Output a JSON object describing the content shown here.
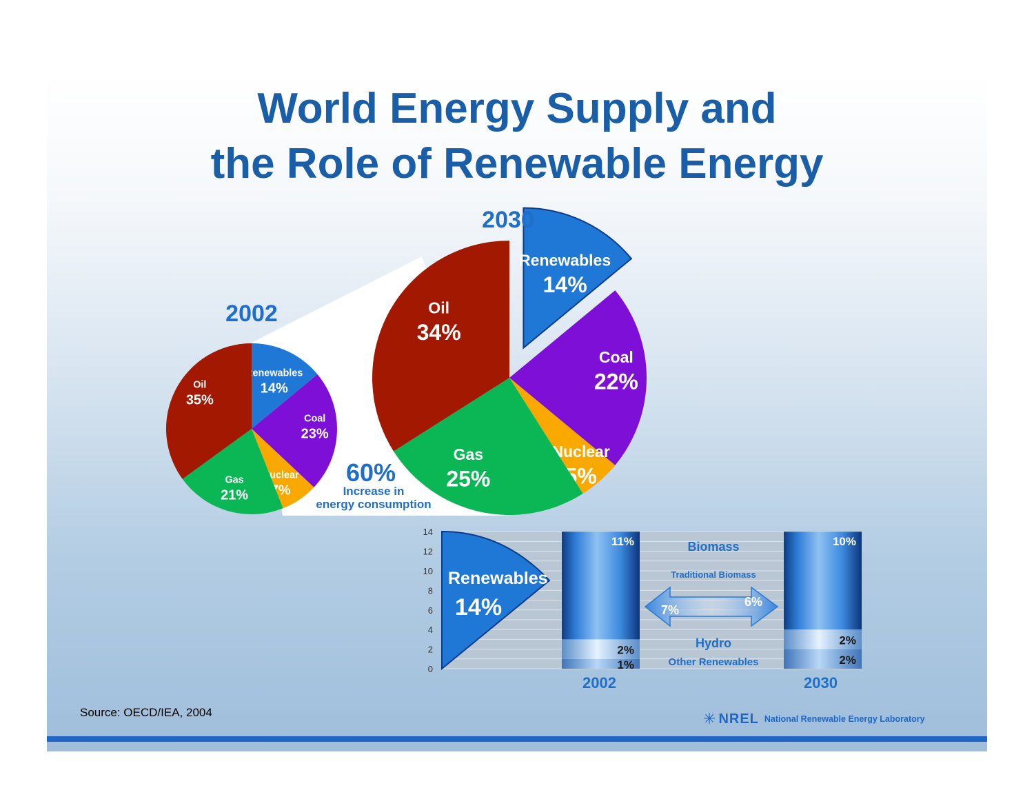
{
  "title": {
    "line1": "World Energy Supply and",
    "line2": "the Role of Renewable Energy"
  },
  "source": "Source: OECD/IEA, 2004",
  "logo": {
    "short": "NREL",
    "full": "National Renewable Energy Laboratory"
  },
  "colors": {
    "oil": "#a31800",
    "renewables": "#1f78d6",
    "coal": "#7d0fd6",
    "nuclear": "#f9a800",
    "gas": "#0bb655",
    "heading": "#1a5ea8"
  },
  "chart_data": [
    {
      "type": "pie",
      "title": "2002",
      "slices": [
        {
          "key": "renewables",
          "label": "Renewables",
          "value": 14,
          "value_label": "14%"
        },
        {
          "key": "coal",
          "label": "Coal",
          "value": 23,
          "value_label": "23%"
        },
        {
          "key": "nuclear",
          "label": "Nuclear",
          "value": 7,
          "value_label": "7%"
        },
        {
          "key": "gas",
          "label": "Gas",
          "value": 21,
          "value_label": "21%"
        },
        {
          "key": "oil",
          "label": "Oil",
          "value": 35,
          "value_label": "35%"
        }
      ]
    },
    {
      "type": "pie",
      "title": "2030",
      "exploded": "renewables",
      "annotation": {
        "value": "60%",
        "line1": "Increase in",
        "line2": "energy consumption"
      },
      "slices": [
        {
          "key": "renewables",
          "label": "Renewables",
          "value": 14,
          "value_label": "14%"
        },
        {
          "key": "coal",
          "label": "Coal",
          "value": 22,
          "value_label": "22%"
        },
        {
          "key": "nuclear",
          "label": "Nuclear",
          "value": 5,
          "value_label": "5%"
        },
        {
          "key": "gas",
          "label": "Gas",
          "value": 25,
          "value_label": "25%"
        },
        {
          "key": "oil",
          "label": "Oil",
          "value": 34,
          "value_label": "34%"
        }
      ]
    },
    {
      "type": "bar",
      "stacked": true,
      "categories": [
        "2002",
        "2030"
      ],
      "ylim": [
        0,
        14
      ],
      "yticks": [
        0,
        2,
        4,
        6,
        8,
        10,
        12,
        14
      ],
      "grid": true,
      "callout": {
        "label": "Renewables",
        "value_label": "14%"
      },
      "series": [
        {
          "name": "Other Renewables",
          "values": [
            1,
            2
          ],
          "value_labels": [
            "1%",
            "2%"
          ]
        },
        {
          "name": "Hydro",
          "values": [
            2,
            2
          ],
          "value_labels": [
            "2%",
            "2%"
          ]
        },
        {
          "name": "Biomass",
          "values": [
            11,
            10
          ],
          "value_labels": [
            "11%",
            "10%"
          ]
        }
      ],
      "traditional_biomass": {
        "label": "Traditional Biomass",
        "values": [
          7,
          6
        ],
        "value_labels": [
          "7%",
          "6%"
        ]
      }
    }
  ]
}
